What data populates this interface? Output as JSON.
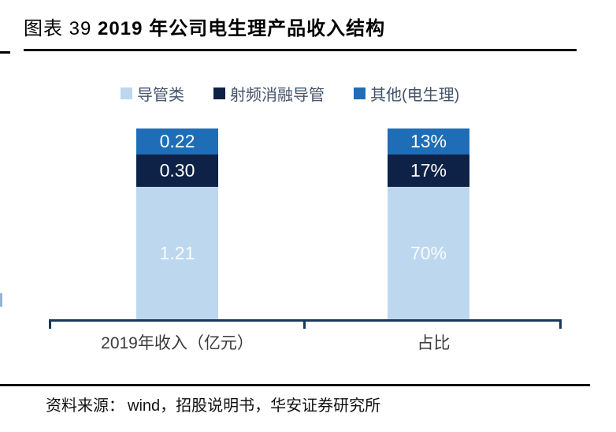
{
  "header": {
    "figure_label": "图表  39 ",
    "title": "2019 年公司电生理产品收入结构"
  },
  "legend": {
    "position": "top",
    "items": [
      {
        "label": "导管类",
        "color": "#bdd7ee"
      },
      {
        "label": "射频消融导管",
        "color": "#0e2247"
      },
      {
        "label": "其他(电生理)",
        "color": "#1f6db6"
      }
    ]
  },
  "chart_data": {
    "type": "bar",
    "subtype": "stacked",
    "orientation": "vertical",
    "title": "2019 年公司电生理产品收入结构",
    "categories": [
      "2019年收入（亿元）",
      "占比"
    ],
    "series": [
      {
        "name": "导管类",
        "color": "#bdd7ee",
        "values": [
          1.21,
          70
        ],
        "labels": [
          "1.21",
          "70%"
        ]
      },
      {
        "name": "射频消融导管",
        "color": "#0e2247",
        "values": [
          0.3,
          17
        ],
        "labels": [
          "0.30",
          "17%"
        ]
      },
      {
        "name": "其他(电生理)",
        "color": "#1f6db6",
        "values": [
          0.22,
          13
        ],
        "labels": [
          "0.22",
          "13%"
        ]
      }
    ],
    "units": [
      "亿元",
      "%"
    ],
    "totals": [
      1.73,
      100
    ],
    "legend_position": "top",
    "grid": false,
    "axis_color": "#17375e",
    "label_color_on_bar": "#ffffff"
  },
  "footer": {
    "source_label": "资料来源：",
    "source_text": "wind，招股说明书，华安证券研究所"
  }
}
